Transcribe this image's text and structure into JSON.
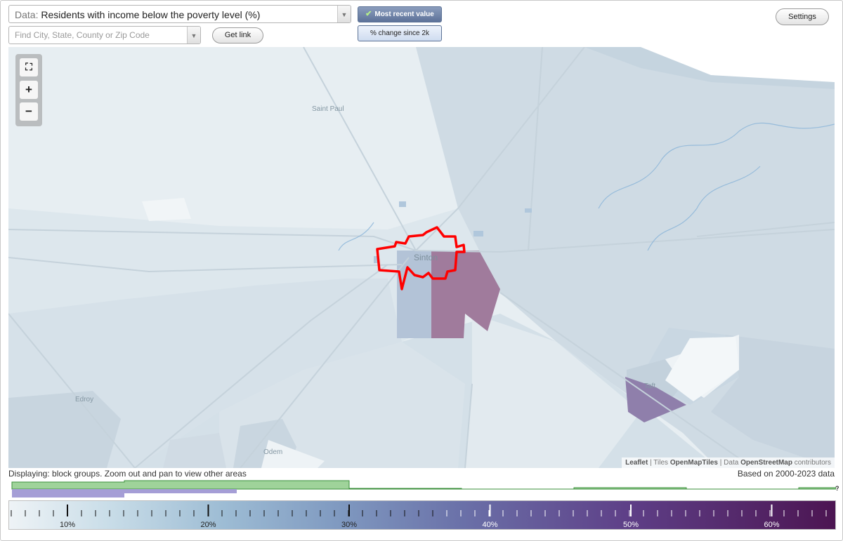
{
  "data_select": {
    "prefix": "Data:",
    "value": "Residents with income below the poverty level (%)"
  },
  "search": {
    "placeholder": "Find City, State, County or Zip Code"
  },
  "buttons": {
    "get_link": "Get link",
    "settings": "Settings"
  },
  "toggles": {
    "most_recent": "Most recent value",
    "pct_change": "% change since 2k"
  },
  "map": {
    "places": {
      "saint_paul": "Saint Paul",
      "sinton": "Sinton",
      "edroy": "Edroy",
      "odem": "Odem",
      "taft": "Taft"
    },
    "attribution": {
      "leaflet": "Leaflet",
      "tiles_prefix": "| Tiles",
      "tiles": "OpenMapTiles",
      "data_prefix": "| Data",
      "osm": "OpenStreetMap",
      "contrib": "contributors"
    },
    "colors": {
      "highlight_outline": "#ff0000",
      "high_value": "#a07b9c",
      "mid_value": "#8f7fab"
    }
  },
  "status": {
    "displaying": "Displaying: block groups. Zoom out and pan to view other areas",
    "based_on": "Based on 2000-2023 data"
  },
  "histogram": {
    "unknown_marker": "?"
  },
  "legend": {
    "ticks": [
      "10%",
      "20%",
      "30%",
      "40%",
      "50%",
      "60%"
    ],
    "gradient": [
      "#eef3f6",
      "#9dbcd4",
      "#6a70a8",
      "#4c1552"
    ]
  }
}
